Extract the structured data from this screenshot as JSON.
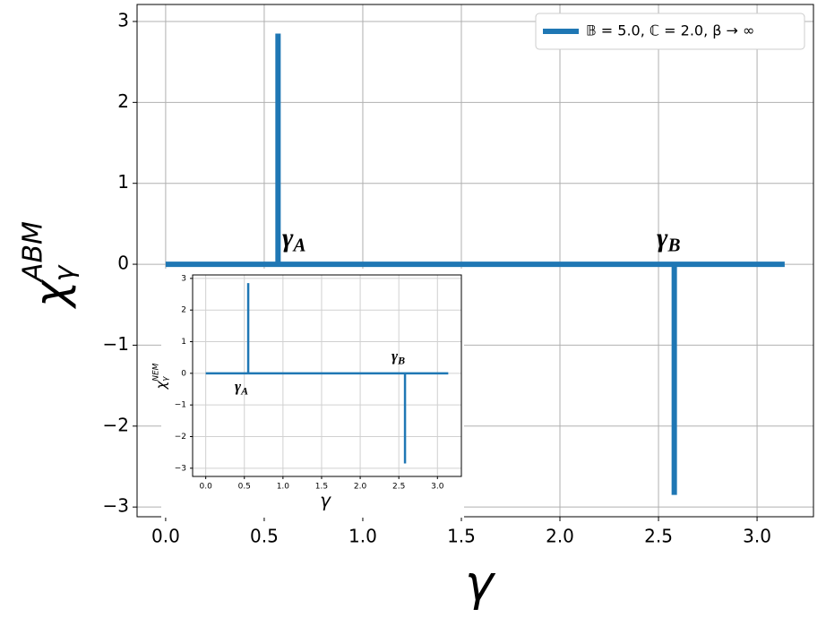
{
  "chart_data": [
    {
      "type": "line",
      "x": [
        0,
        0.57,
        0.57,
        0.57,
        2.58,
        2.58,
        2.58,
        3.14
      ],
      "series": [
        {
          "name": "𝔹 = 5.0, ℂ = 2.0, β → ∞",
          "color": "#1f77b4",
          "values": [
            0,
            0,
            2.85,
            0,
            0,
            -2.85,
            0,
            0
          ]
        }
      ],
      "xlabel": "γ",
      "ylabel": {
        "base": "χ",
        "sub": "γ",
        "sup": "ABM"
      },
      "annotations": [
        {
          "text": "γ",
          "sub": "A"
        },
        {
          "text": "γ",
          "sub": "B"
        }
      ],
      "xlim": [
        -0.145,
        3.286
      ],
      "ylim": [
        -3.12,
        3.21
      ],
      "xticks": [
        {
          "value": 0,
          "label": "0.0"
        },
        {
          "value": 0.5,
          "label": "0.5"
        },
        {
          "value": 1,
          "label": "1.0"
        },
        {
          "value": 1.5,
          "label": "1.5"
        },
        {
          "value": 2,
          "label": "2.0"
        },
        {
          "value": 2.5,
          "label": "2.5"
        },
        {
          "value": 3,
          "label": "3.0"
        }
      ],
      "yticks": [
        {
          "value": -3,
          "label": "−3"
        },
        {
          "value": -2,
          "label": "−2"
        },
        {
          "value": -1,
          "label": "−1"
        },
        0,
        1,
        2,
        3
      ],
      "grid": true,
      "legend": "upper right"
    },
    {
      "type": "line",
      "x": [
        0,
        0.55,
        0.55,
        0.55,
        2.58,
        2.58,
        2.58,
        3.14
      ],
      "series": [
        {
          "color": "#1f77b4",
          "values": [
            0,
            0,
            2.85,
            0,
            0,
            -2.85,
            0,
            0
          ]
        }
      ],
      "xlabel": "γ",
      "ylabel": {
        "base": "χ",
        "sub": "γ",
        "sup": "NEM"
      },
      "annotations": [
        {
          "text": "γ",
          "sub": "A"
        },
        {
          "text": "γ",
          "sub": "B"
        }
      ],
      "xlim": [
        -0.17,
        3.31
      ],
      "ylim": [
        -3.26,
        3.11
      ],
      "xticks": [
        {
          "value": 0,
          "label": "0.0"
        },
        {
          "value": 0.5,
          "label": "0.5"
        },
        {
          "value": 1,
          "label": "1.0"
        },
        {
          "value": 1.5,
          "label": "1.5"
        },
        {
          "value": 2,
          "label": "2.0"
        },
        {
          "value": 2.5,
          "label": "2.5"
        },
        {
          "value": 3,
          "label": "3.0"
        }
      ],
      "yticks": [
        {
          "value": -3,
          "label": "−3"
        },
        {
          "value": -2,
          "label": "−2"
        },
        {
          "value": -1,
          "label": "−1"
        },
        0,
        1,
        2,
        3
      ],
      "grid": true
    }
  ]
}
